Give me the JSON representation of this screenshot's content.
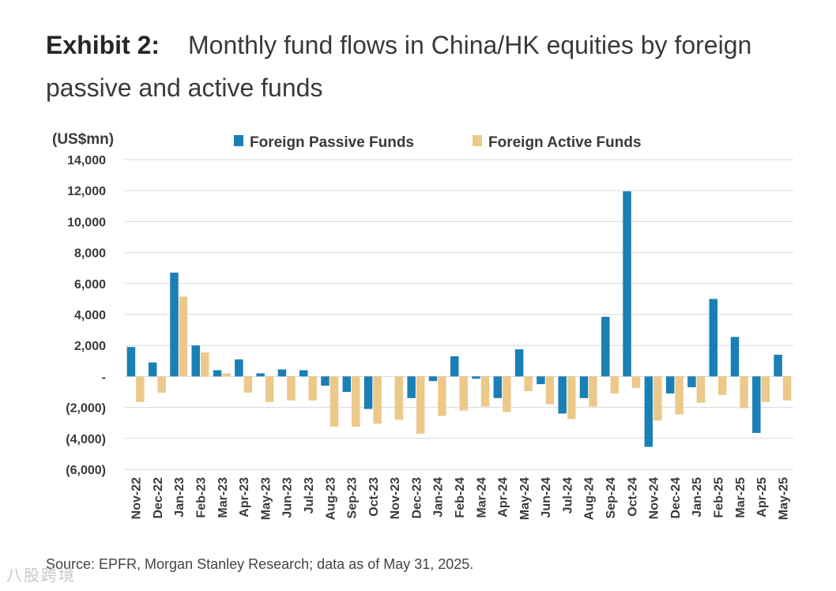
{
  "title": {
    "label": "Exhibit 2:",
    "text": "Monthly fund flows in China/HK equities by foreign passive and active funds"
  },
  "source": "Source: EPFR, Morgan Stanley Research; data as of May 31, 2025.",
  "watermark": "八股跨境",
  "colors": {
    "passive": "#1a7fb5",
    "active": "#ecc98a",
    "grid": "#d9d9d9",
    "text": "#3a3a3a"
  },
  "chart_data": {
    "type": "bar",
    "unit_label": "(US$mn)",
    "categories": [
      "Nov-22",
      "Dec-22",
      "Jan-23",
      "Feb-23",
      "Mar-23",
      "Apr-23",
      "May-23",
      "Jun-23",
      "Jul-23",
      "Aug-23",
      "Sep-23",
      "Oct-23",
      "Nov-23",
      "Dec-23",
      "Jan-24",
      "Feb-24",
      "Mar-24",
      "Apr-24",
      "May-24",
      "Jun-24",
      "Jul-24",
      "Aug-24",
      "Sep-24",
      "Oct-24",
      "Nov-24",
      "Dec-24",
      "Jan-25",
      "Feb-25",
      "Mar-25",
      "Apr-25",
      "May-25"
    ],
    "series": [
      {
        "name": "Foreign Passive Funds",
        "color": "#1a7fb5",
        "values": [
          1900,
          900,
          6700,
          2000,
          400,
          1100,
          200,
          450,
          400,
          -600,
          -1000,
          -2100,
          0,
          -1400,
          -300,
          1300,
          -150,
          -1400,
          1750,
          -500,
          -2400,
          -1400,
          3850,
          11950,
          -4550,
          -1100,
          -700,
          5000,
          2550,
          -3650,
          1400
        ]
      },
      {
        "name": "Foreign Active Funds",
        "color": "#ecc98a",
        "values": [
          -1650,
          -1050,
          5150,
          1550,
          200,
          -1050,
          -1650,
          -1550,
          -1550,
          -3250,
          -3250,
          -3050,
          -2800,
          -3700,
          -2550,
          -2200,
          -1950,
          -2300,
          -950,
          -1800,
          -2750,
          -1950,
          -1100,
          -750,
          -2850,
          -2450,
          -1700,
          -1200,
          -2050,
          -1650,
          -1550
        ]
      }
    ],
    "ylim": [
      -6000,
      14000
    ],
    "yticks": [
      -6000,
      -4000,
      -2000,
      0,
      2000,
      4000,
      6000,
      8000,
      10000,
      12000,
      14000
    ],
    "ytick_labels": [
      "(6,000)",
      "(4,000)",
      "(2,000)",
      "-",
      "2,000",
      "4,000",
      "6,000",
      "8,000",
      "10,000",
      "12,000",
      "14,000"
    ],
    "legend_position": "top",
    "grid": true
  }
}
